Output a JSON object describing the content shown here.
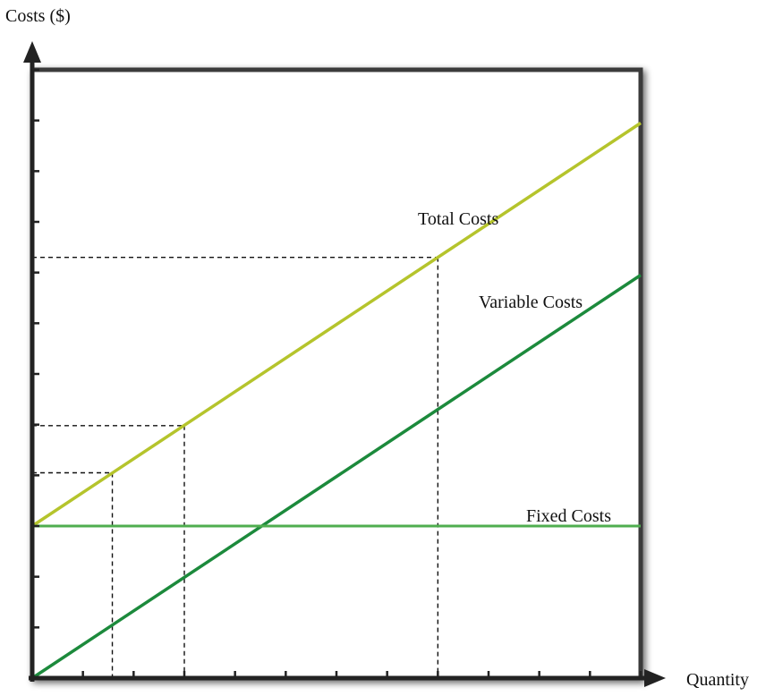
{
  "chart_data": {
    "type": "line",
    "ylabel": "Costs ($)",
    "xlabel": "Quantity",
    "xlim": [
      0,
      12
    ],
    "ylim": [
      0,
      12
    ],
    "x_tick_count": 12,
    "y_tick_count": 12,
    "x_tick_labels": [],
    "y_tick_labels": [],
    "series": [
      {
        "name": "Total Costs",
        "color": "#b5c42c",
        "x": [
          0,
          12
        ],
        "y": [
          3,
          10.95
        ]
      },
      {
        "name": "Variable Costs",
        "color": "#1c8a3c",
        "x": [
          0,
          12
        ],
        "y": [
          0,
          7.95
        ]
      },
      {
        "name": "Fixed Costs",
        "color": "#4fae4f",
        "x": [
          0,
          12
        ],
        "y": [
          3,
          3
        ]
      }
    ],
    "reference_points": [
      {
        "x": 1.58,
        "y": 4.05
      },
      {
        "x": 3.0,
        "y": 4.98
      },
      {
        "x": 8.0,
        "y": 8.3
      }
    ],
    "grid": false,
    "legend": "none"
  }
}
